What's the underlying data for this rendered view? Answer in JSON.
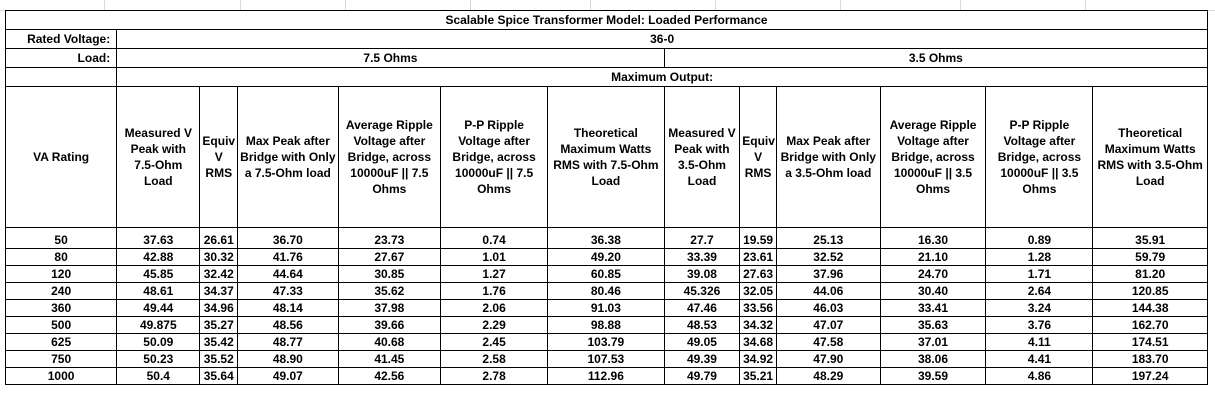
{
  "title": "Scalable Spice Transformer Model: Loaded Performance",
  "rated_voltage_label": "Rated Voltage:",
  "rated_voltage_value": "36-0",
  "load_label": "Load:",
  "load_a": "7.5 Ohms",
  "load_b": "3.5 Ohms",
  "max_output_label": "Maximum Output:",
  "columns": [
    "VA Rating",
    "Measured V Peak with 7.5-Ohm Load",
    "Equiv V RMS",
    "Max Peak after Bridge with Only a 7.5-Ohm load",
    "Average Ripple Voltage after Bridge, across 10000uF || 7.5 Ohms",
    "P-P Ripple Voltage after Bridge, across 10000uF || 7.5 Ohms",
    "Theoretical Maximum Watts RMS with 7.5-Ohm Load",
    "Measured V Peak with 3.5-Ohm Load",
    "Equiv V RMS",
    "Max Peak after Bridge with Only a 3.5-Ohm load",
    "Average Ripple Voltage after Bridge, across 10000uF || 3.5 Ohms",
    "P-P Ripple Voltage after Bridge, across 10000uF || 3.5 Ohms",
    "Theoretical Maximum Watts RMS with 3.5-Ohm Load"
  ],
  "rows": [
    [
      "50",
      "37.63",
      "26.61",
      "36.70",
      "23.73",
      "0.74",
      "36.38",
      "27.7",
      "19.59",
      "25.13",
      "16.30",
      "0.89",
      "35.91"
    ],
    [
      "80",
      "42.88",
      "30.32",
      "41.76",
      "27.67",
      "1.01",
      "49.20",
      "33.39",
      "23.61",
      "32.52",
      "21.10",
      "1.28",
      "59.79"
    ],
    [
      "120",
      "45.85",
      "32.42",
      "44.64",
      "30.85",
      "1.27",
      "60.85",
      "39.08",
      "27.63",
      "37.96",
      "24.70",
      "1.71",
      "81.20"
    ],
    [
      "240",
      "48.61",
      "34.37",
      "47.33",
      "35.62",
      "1.76",
      "80.46",
      "45.326",
      "32.05",
      "44.06",
      "30.40",
      "2.64",
      "120.85"
    ],
    [
      "360",
      "49.44",
      "34.96",
      "48.14",
      "37.98",
      "2.06",
      "91.03",
      "47.46",
      "33.56",
      "46.03",
      "33.41",
      "3.24",
      "144.38"
    ],
    [
      "500",
      "49.875",
      "35.27",
      "48.56",
      "39.66",
      "2.29",
      "98.88",
      "48.53",
      "34.32",
      "47.07",
      "35.63",
      "3.76",
      "162.70"
    ],
    [
      "625",
      "50.09",
      "35.42",
      "48.77",
      "40.68",
      "2.45",
      "103.79",
      "49.05",
      "34.68",
      "47.58",
      "37.01",
      "4.11",
      "174.51"
    ],
    [
      "750",
      "50.23",
      "35.52",
      "48.90",
      "41.45",
      "2.58",
      "107.53",
      "49.39",
      "34.92",
      "47.90",
      "38.06",
      "4.41",
      "183.70"
    ],
    [
      "1000",
      "50.4",
      "35.64",
      "49.07",
      "42.56",
      "2.78",
      "112.96",
      "49.79",
      "35.21",
      "48.29",
      "39.59",
      "4.86",
      "197.24"
    ]
  ]
}
